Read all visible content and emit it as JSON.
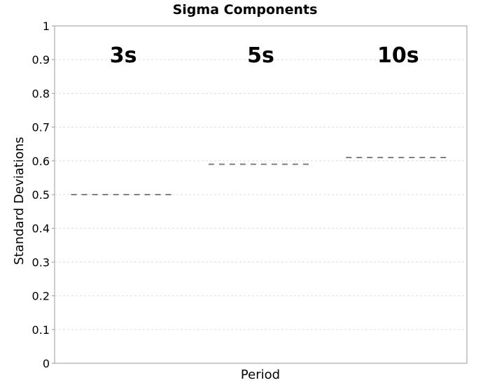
{
  "chart_data": {
    "type": "line",
    "title": "Sigma Components",
    "xlabel": "Period",
    "ylabel": "Standard Deviations",
    "ylim": [
      0,
      1
    ],
    "yticks": [
      "0",
      "0.1",
      "0.2",
      "0.3",
      "0.4",
      "0.5",
      "0.6",
      "0.7",
      "0.8",
      "0.9",
      "1"
    ],
    "grid": true,
    "categories": [
      "3s",
      "5s",
      "10s"
    ],
    "series": [
      {
        "values": [
          0.5,
          0.59,
          0.61
        ],
        "style": "dashed",
        "color": "#808080"
      }
    ]
  }
}
